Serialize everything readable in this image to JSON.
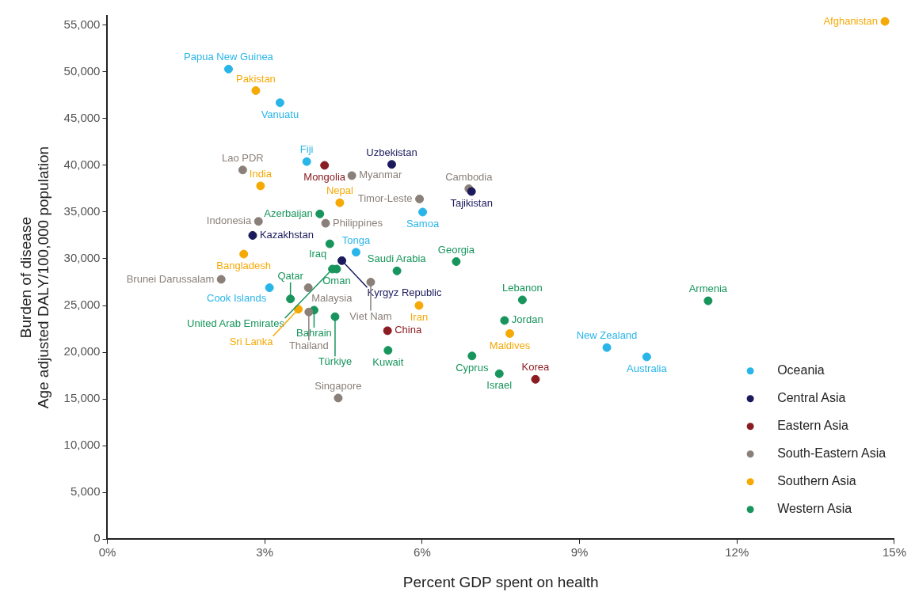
{
  "chart_data": {
    "type": "scatter",
    "xlabel": "Percent GDP spent on health",
    "ylabel": "Burden of disease\nAge adjusted DALY/100,000 population",
    "xlim": [
      0,
      15
    ],
    "xticks": [
      {
        "value": 0,
        "label": "0%"
      },
      {
        "value": 3,
        "label": "3%"
      },
      {
        "value": 6,
        "label": "6%"
      },
      {
        "value": 9,
        "label": "9%"
      },
      {
        "value": 12,
        "label": "12%"
      },
      {
        "value": 15,
        "label": "15%"
      }
    ],
    "ylim": [
      0,
      56000
    ],
    "yticks": [
      0,
      {
        "value": 5000,
        "label": "5,000"
      },
      {
        "value": 10000,
        "label": "10,000"
      },
      {
        "value": 15000,
        "label": "15,000"
      },
      {
        "value": 20000,
        "label": "20,000"
      },
      {
        "value": 25000,
        "label": "25,000"
      },
      {
        "value": 30000,
        "label": "30,000"
      },
      {
        "value": 35000,
        "label": "35,000"
      },
      {
        "value": 40000,
        "label": "40,000"
      },
      {
        "value": 45000,
        "label": "45,000"
      },
      {
        "value": 50000,
        "label": "50,000"
      },
      {
        "value": 55000,
        "label": "55,000"
      }
    ],
    "grid": false,
    "legend": "bottom right",
    "marker": "circle",
    "series": [
      {
        "name": "Oceania",
        "color": "#29b5e8",
        "x": [
          2.31,
          3.29,
          3.8,
          6.01,
          4.74,
          3.09,
          9.52,
          10.28
        ],
        "values": [
          50300,
          46700,
          40400,
          35000,
          30700,
          26900,
          20500,
          19500
        ]
      },
      {
        "name": "Central Asia",
        "color": "#1b1a5c",
        "x": [
          5.42,
          6.94,
          2.77,
          4.47
        ],
        "values": [
          40100,
          37200,
          32500,
          29800
        ]
      },
      {
        "name": "Eastern Asia",
        "color": "#8b1c22",
        "x": [
          4.14,
          5.34,
          8.16
        ],
        "values": [
          40000,
          22300,
          17100
        ]
      },
      {
        "name": "South-Eastern Asia",
        "color": "#8a8079",
        "x": [
          2.58,
          4.66,
          6.89,
          5.95,
          2.88,
          4.16,
          2.17,
          3.83,
          5.02,
          3.84,
          4.4
        ],
        "values": [
          39500,
          38900,
          37500,
          36400,
          34000,
          33800,
          27800,
          26900,
          27500,
          24300,
          15100
        ]
      },
      {
        "name": "Southern Asia",
        "color": "#f5a905",
        "x": [
          14.82,
          2.83,
          2.92,
          4.43,
          2.6,
          3.64,
          5.94,
          7.67
        ],
        "values": [
          55400,
          48000,
          37800,
          36000,
          30500,
          24600,
          25000,
          22000
        ]
      },
      {
        "name": "Western Asia",
        "color": "#17955c",
        "x": [
          4.05,
          4.24,
          6.65,
          4.29,
          4.37,
          5.52,
          3.49,
          3.94,
          4.34,
          7.91,
          11.45,
          7.57,
          5.35,
          6.95,
          7.47
        ],
        "values": [
          34800,
          31600,
          29700,
          28900,
          28900,
          28700,
          25700,
          24500,
          23800,
          25600,
          25500,
          23400,
          20200,
          19600,
          17700
        ]
      }
    ],
    "annotations": [
      {
        "text": "Afghanistan",
        "x": 14.82,
        "y": 55400
      },
      {
        "text": "Papua New Guinea",
        "x": 2.31,
        "y": 50300
      },
      {
        "text": "Pakistan",
        "x": 2.83,
        "y": 48000
      },
      {
        "text": "Vanuatu",
        "x": 3.29,
        "y": 46700
      },
      {
        "text": "Fiji",
        "x": 3.8,
        "y": 40400
      },
      {
        "text": "Mongolia",
        "x": 4.14,
        "y": 40000
      },
      {
        "text": "Uzbekistan",
        "x": 5.42,
        "y": 40100
      },
      {
        "text": "Lao PDR",
        "x": 2.58,
        "y": 39500
      },
      {
        "text": "Myanmar",
        "x": 4.66,
        "y": 38900
      },
      {
        "text": "India",
        "x": 2.92,
        "y": 37800
      },
      {
        "text": "Cambodia",
        "x": 6.89,
        "y": 37500
      },
      {
        "text": "Tajikistan",
        "x": 6.94,
        "y": 37200
      },
      {
        "text": "Timor-Leste",
        "x": 5.95,
        "y": 36400
      },
      {
        "text": "Nepal",
        "x": 4.43,
        "y": 36000
      },
      {
        "text": "Samoa",
        "x": 6.01,
        "y": 35000
      },
      {
        "text": "Azerbaijan",
        "x": 4.05,
        "y": 34800
      },
      {
        "text": "Indonesia",
        "x": 2.88,
        "y": 34000
      },
      {
        "text": "Philippines",
        "x": 4.16,
        "y": 33800
      },
      {
        "text": "Kazakhstan",
        "x": 2.77,
        "y": 32500
      },
      {
        "text": "Iraq",
        "x": 4.24,
        "y": 31600
      },
      {
        "text": "Tonga",
        "x": 4.74,
        "y": 30700
      },
      {
        "text": "Bangladesh",
        "x": 2.6,
        "y": 30500
      },
      {
        "text": "Kyrgyz Republic",
        "x": 4.47,
        "y": 29800
      },
      {
        "text": "Georgia",
        "x": 6.65,
        "y": 29700
      },
      {
        "text": "United Arab Emirates",
        "x": 4.29,
        "y": 28900
      },
      {
        "text": "Oman",
        "x": 4.37,
        "y": 28900
      },
      {
        "text": "Saudi Arabia",
        "x": 5.52,
        "y": 28700
      },
      {
        "text": "Cook Islands",
        "x": 3.09,
        "y": 26900
      },
      {
        "text": "Brunei Darussalam",
        "x": 2.17,
        "y": 27800
      },
      {
        "text": "Malaysia",
        "x": 3.83,
        "y": 26900
      },
      {
        "text": "Viet Nam",
        "x": 5.02,
        "y": 27500
      },
      {
        "text": "Qatar",
        "x": 3.49,
        "y": 25700
      },
      {
        "text": "Bahrain",
        "x": 3.94,
        "y": 24500
      },
      {
        "text": "Sri Lanka",
        "x": 3.64,
        "y": 24600
      },
      {
        "text": "Thailand",
        "x": 3.84,
        "y": 24300
      },
      {
        "text": "Türkiye",
        "x": 4.34,
        "y": 23800
      },
      {
        "text": "Iran",
        "x": 5.94,
        "y": 25000
      },
      {
        "text": "Lebanon",
        "x": 7.91,
        "y": 25600
      },
      {
        "text": "Armenia",
        "x": 11.45,
        "y": 25500
      },
      {
        "text": "Jordan",
        "x": 7.57,
        "y": 23400
      },
      {
        "text": "China",
        "x": 5.34,
        "y": 22300
      },
      {
        "text": "Maldives",
        "x": 7.67,
        "y": 22000
      },
      {
        "text": "New Zealand",
        "x": 9.52,
        "y": 20500
      },
      {
        "text": "Kuwait",
        "x": 5.35,
        "y": 20200
      },
      {
        "text": "Cyprus",
        "x": 6.95,
        "y": 19600
      },
      {
        "text": "Australia",
        "x": 10.28,
        "y": 19500
      },
      {
        "text": "Israel",
        "x": 7.47,
        "y": 17700
      },
      {
        "text": "Korea",
        "x": 8.16,
        "y": 17100
      },
      {
        "text": "Singapore",
        "x": 4.4,
        "y": 15100
      }
    ]
  }
}
